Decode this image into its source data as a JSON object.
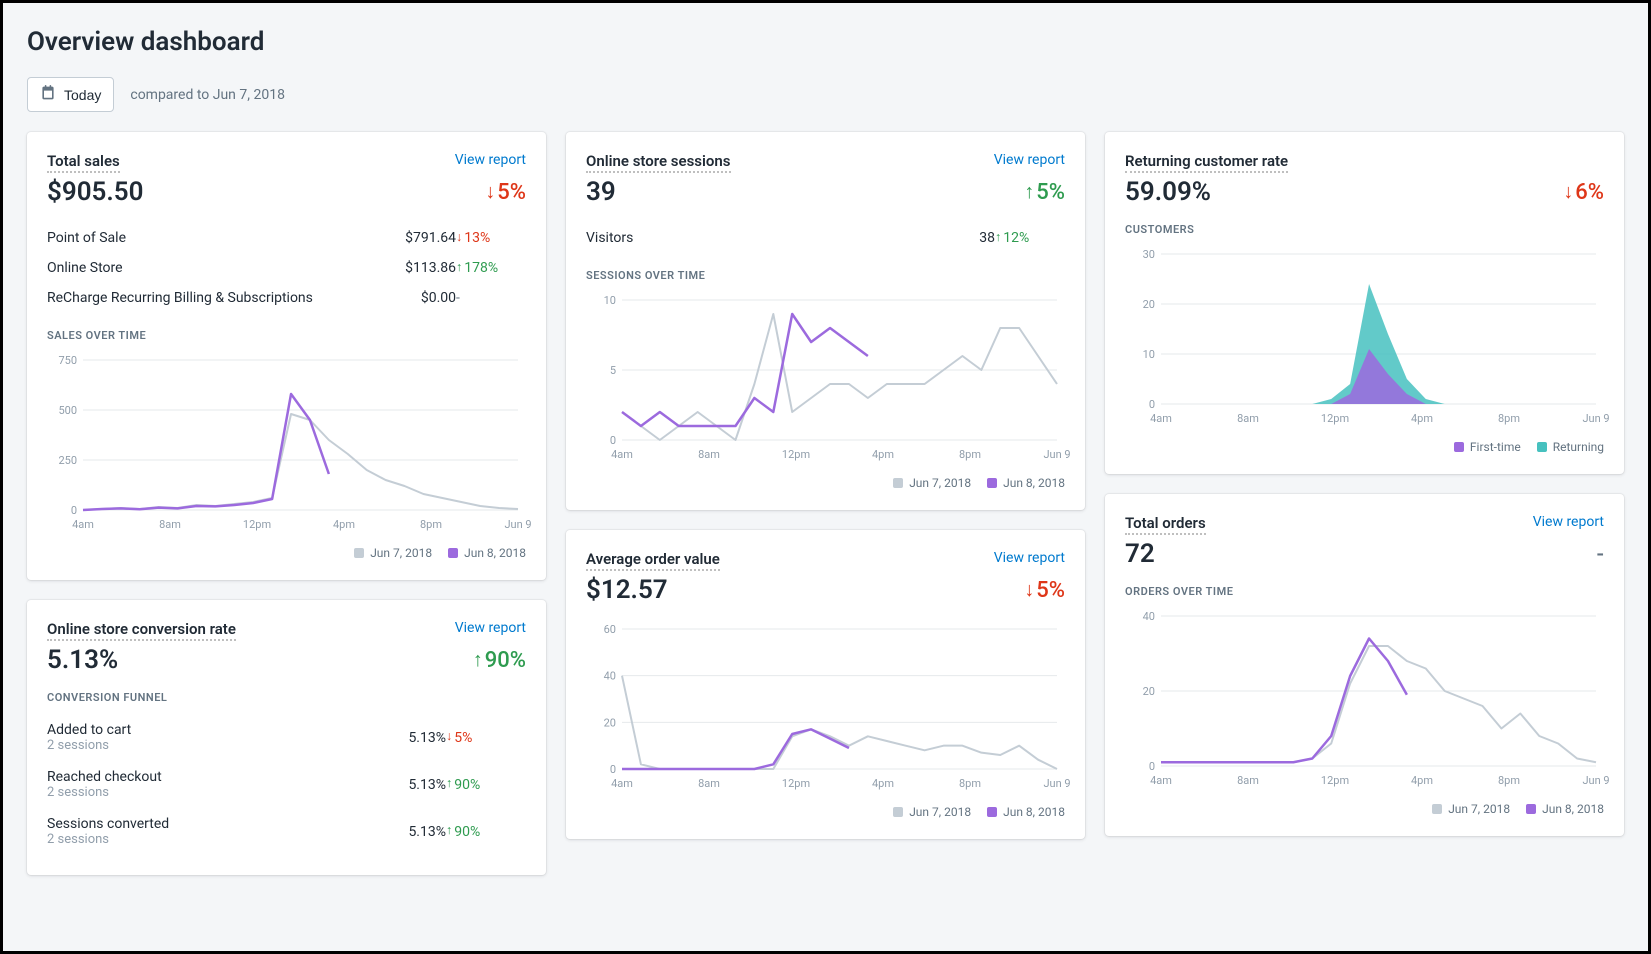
{
  "page": {
    "title": "Overview dashboard",
    "date_button": "Today",
    "compared_text": "compared to Jun 7, 2018",
    "view_report_label": "View report"
  },
  "colors": {
    "primary_line": "#9c6ade",
    "compare_line": "#c4cdd5",
    "up": "#2e9b4f",
    "down": "#de3618",
    "area_primary": "#9c6ade",
    "area_secondary": "#47c1bf",
    "grid": "#e6e9eb",
    "axis": "#919eab",
    "bg": "#f4f6f8"
  },
  "cards": {
    "total_sales": {
      "title": "Total sales",
      "value": "$905.50",
      "delta": {
        "dir": "down",
        "text": "5%"
      },
      "breakdown": [
        {
          "label": "Point of Sale",
          "value": "$791.64",
          "delta": {
            "dir": "down",
            "text": "13%"
          }
        },
        {
          "label": "Online Store",
          "value": "$113.86",
          "delta": {
            "dir": "up",
            "text": "178%"
          }
        },
        {
          "label": "ReCharge Recurring Billing & Subscriptions",
          "value": "$0.00",
          "delta": {
            "dir": "none",
            "text": "-"
          }
        }
      ],
      "chart": {
        "label": "SALES OVER TIME",
        "type": "line",
        "ylim": [
          0,
          750
        ],
        "yticks": [
          0,
          250,
          500,
          750
        ],
        "xticks": [
          "4am",
          "8am",
          "12pm",
          "4pm",
          "8pm",
          "Jun 9"
        ],
        "compare_series": [
          0,
          5,
          10,
          5,
          15,
          10,
          25,
          20,
          30,
          40,
          60,
          480,
          450,
          350,
          280,
          200,
          150,
          120,
          80,
          60,
          40,
          20,
          10,
          5
        ],
        "primary_series": [
          0,
          5,
          8,
          4,
          12,
          8,
          20,
          18,
          25,
          35,
          55,
          580,
          450,
          180
        ],
        "legend": [
          "Jun 7, 2018",
          "Jun 8, 2018"
        ]
      }
    },
    "conversion": {
      "title": "Online store conversion rate",
      "value": "5.13%",
      "delta": {
        "dir": "up",
        "text": "90%"
      },
      "funnel_label": "CONVERSION FUNNEL",
      "funnel": [
        {
          "title": "Added to cart",
          "sub": "2 sessions",
          "value": "5.13%",
          "delta": {
            "dir": "down",
            "text": "5%"
          }
        },
        {
          "title": "Reached checkout",
          "sub": "2 sessions",
          "value": "5.13%",
          "delta": {
            "dir": "up",
            "text": "90%"
          }
        },
        {
          "title": "Sessions converted",
          "sub": "2 sessions",
          "value": "5.13%",
          "delta": {
            "dir": "up",
            "text": "90%"
          }
        }
      ]
    },
    "sessions": {
      "title": "Online store sessions",
      "value": "39",
      "delta": {
        "dir": "up",
        "text": "5%"
      },
      "breakdown": [
        {
          "label": "Visitors",
          "value": "38",
          "delta": {
            "dir": "up",
            "text": "12%"
          }
        }
      ],
      "chart": {
        "label": "SESSIONS OVER TIME",
        "type": "line",
        "ylim": [
          0,
          10
        ],
        "yticks": [
          0,
          5,
          10
        ],
        "xticks": [
          "4am",
          "8am",
          "12pm",
          "4pm",
          "8pm",
          "Jun 9"
        ],
        "compare_series": [
          2,
          1,
          0,
          1,
          2,
          1,
          0,
          4,
          9,
          2,
          3,
          4,
          4,
          3,
          4,
          4,
          4,
          5,
          6,
          5,
          8,
          8,
          6,
          4
        ],
        "primary_series": [
          2,
          1,
          2,
          1,
          1,
          1,
          1,
          3,
          2,
          9,
          7,
          8,
          7,
          6
        ],
        "legend": [
          "Jun 7, 2018",
          "Jun 8, 2018"
        ]
      }
    },
    "aov": {
      "title": "Average order value",
      "value": "$12.57",
      "delta": {
        "dir": "down",
        "text": "5%"
      },
      "chart": {
        "label": "",
        "type": "line",
        "ylim": [
          0,
          60
        ],
        "yticks": [
          0,
          20,
          40,
          60
        ],
        "xticks": [
          "4am",
          "8am",
          "12pm",
          "4pm",
          "8pm",
          "Jun 9"
        ],
        "compare_series": [
          40,
          2,
          0,
          0,
          0,
          0,
          0,
          0,
          0,
          14,
          17,
          14,
          10,
          14,
          12,
          10,
          8,
          10,
          10,
          7,
          6,
          10,
          4,
          0
        ],
        "primary_series": [
          0,
          0,
          0,
          0,
          0,
          0,
          0,
          0,
          2,
          15,
          17,
          13,
          9
        ],
        "legend": [
          "Jun 7, 2018",
          "Jun 8, 2018"
        ]
      }
    },
    "returning": {
      "title": "Returning customer rate",
      "value": "59.09%",
      "delta": {
        "dir": "down",
        "text": "6%"
      },
      "chart": {
        "label": "CUSTOMERS",
        "type": "area",
        "ylim": [
          0,
          30
        ],
        "yticks": [
          0,
          10,
          20,
          30
        ],
        "xticks": [
          "4am",
          "8am",
          "12pm",
          "4pm",
          "8pm",
          "Jun 9"
        ],
        "series_a": [
          0,
          0,
          0,
          0,
          0,
          0,
          0,
          0,
          0,
          1,
          4,
          24,
          14,
          5,
          1,
          0,
          0,
          0,
          0,
          0,
          0,
          0,
          0,
          0
        ],
        "series_b": [
          0,
          0,
          0,
          0,
          0,
          0,
          0,
          0,
          0,
          0,
          2,
          11,
          6,
          2,
          0,
          0,
          0,
          0,
          0,
          0,
          0,
          0,
          0,
          0
        ],
        "legend": [
          "First-time",
          "Returning"
        ],
        "legend_colors": [
          "#9c6ade",
          "#47c1bf"
        ]
      }
    },
    "orders": {
      "title": "Total orders",
      "value": "72",
      "delta": {
        "dir": "none",
        "text": "-"
      },
      "chart": {
        "label": "ORDERS OVER TIME",
        "type": "line",
        "ylim": [
          0,
          40
        ],
        "yticks": [
          0,
          20,
          40
        ],
        "xticks": [
          "4am",
          "8am",
          "12pm",
          "4pm",
          "8pm",
          "Jun 9"
        ],
        "compare_series": [
          1,
          1,
          1,
          1,
          1,
          1,
          1,
          1,
          2,
          6,
          22,
          32,
          32,
          28,
          26,
          20,
          18,
          16,
          10,
          14,
          8,
          6,
          2,
          1
        ],
        "primary_series": [
          1,
          1,
          1,
          1,
          1,
          1,
          1,
          1,
          2,
          8,
          24,
          34,
          28,
          19
        ],
        "legend": [
          "Jun 7, 2018",
          "Jun 8, 2018"
        ]
      }
    }
  }
}
